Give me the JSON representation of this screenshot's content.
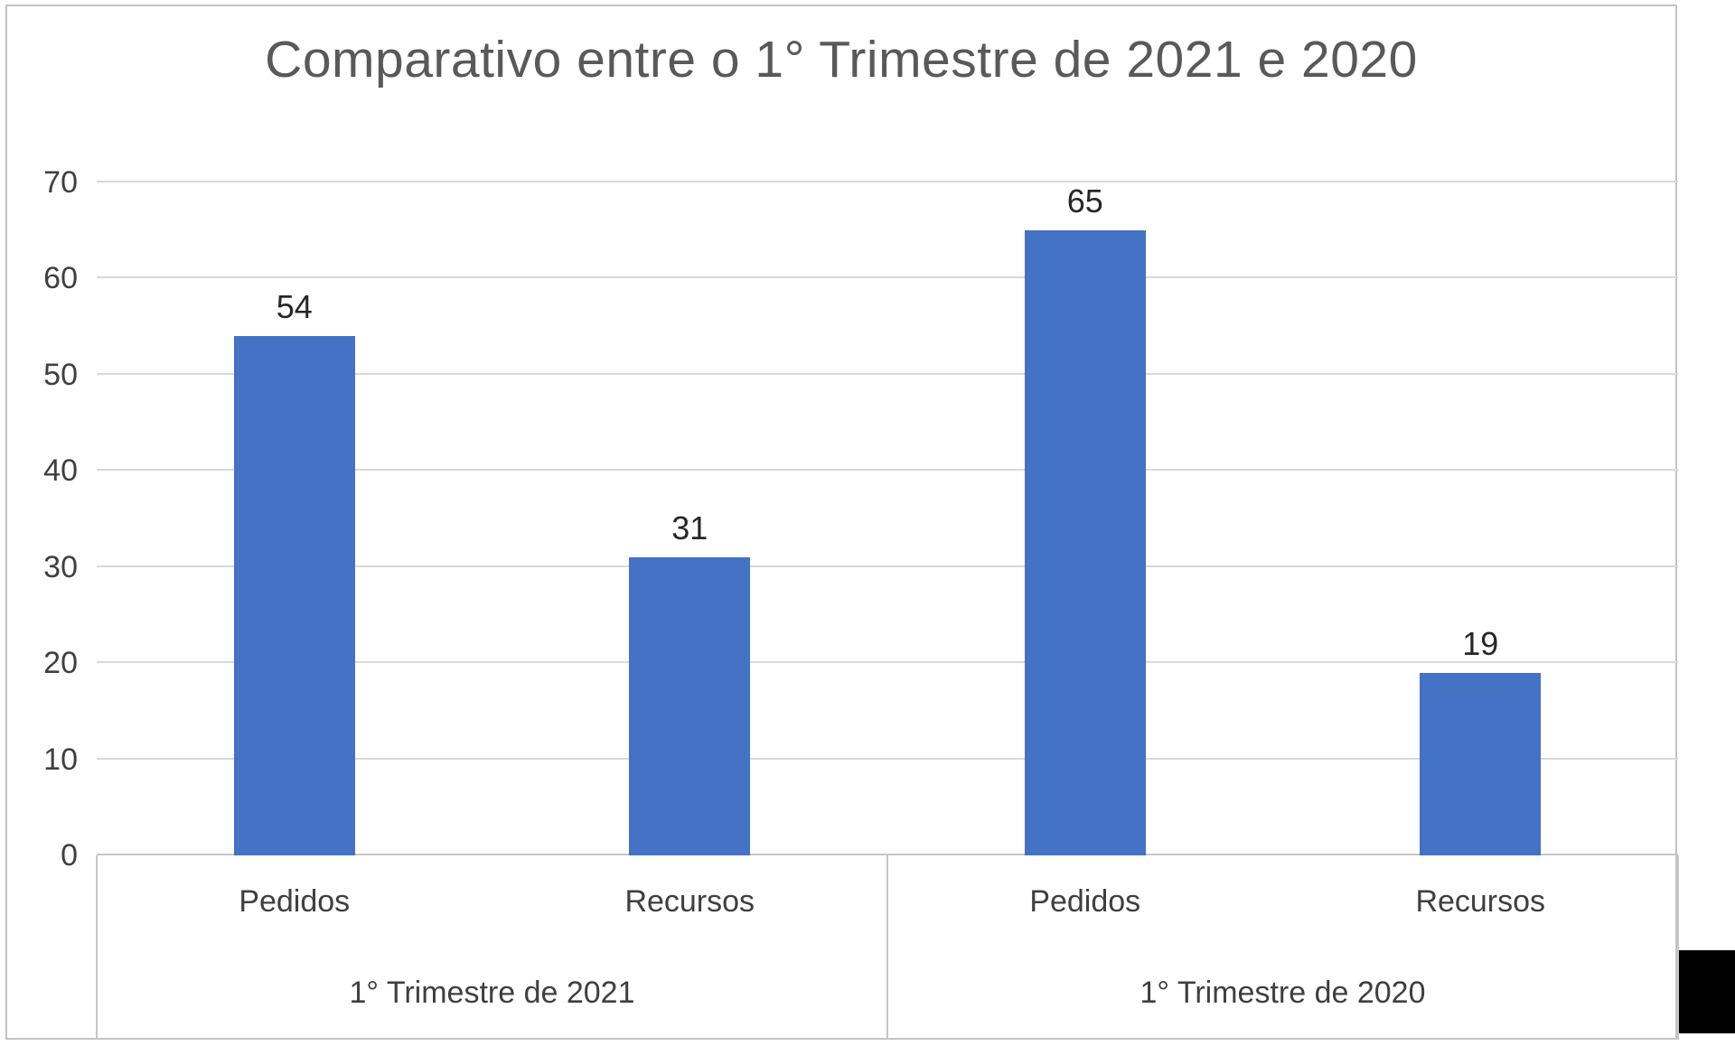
{
  "chart_data": {
    "type": "bar",
    "title": "Comparativo entre o 1° Trimestre de 2021 e 2020",
    "xlabel": "",
    "ylabel": "",
    "ylim": [
      0,
      70
    ],
    "ytick_step": 10,
    "grid": true,
    "legend": "none",
    "data_labels": true,
    "groups": [
      {
        "label": "1° Trimestre de 2021",
        "categories": [
          "Pedidos",
          "Recursos"
        ],
        "values": [
          54,
          31
        ]
      },
      {
        "label": "1° Trimestre de 2020",
        "categories": [
          "Pedidos",
          "Recursos"
        ],
        "values": [
          65,
          19
        ]
      }
    ],
    "categories": [
      "Pedidos",
      "Recursos",
      "Pedidos",
      "Recursos"
    ],
    "values": [
      54,
      31,
      65,
      19
    ]
  },
  "colors": {
    "bar": "#4472c4",
    "gridline": "#d9d9d9",
    "axis_line": "#c6c6c6",
    "axis_text": "#3f3f3f",
    "data_label_text": "#262626",
    "title_text": "#595959",
    "frame_border": "#c3c3c3",
    "background": "#ffffff"
  }
}
